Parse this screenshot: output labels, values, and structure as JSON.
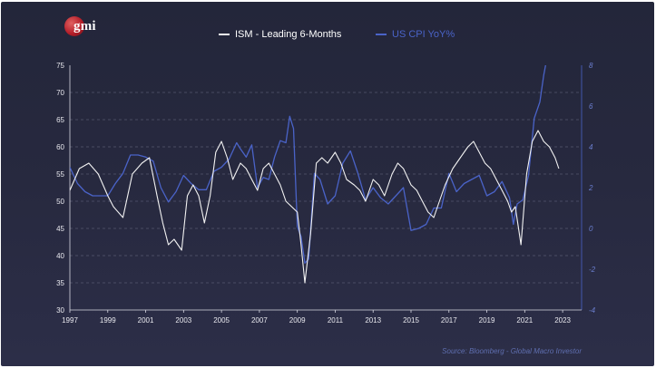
{
  "brand": {
    "logo_text": "gmi"
  },
  "colors": {
    "ism": "#f2f2f2",
    "cpi": "#4a63c8",
    "background": "#26283d",
    "grid": "#6c6f86"
  },
  "source": "Source: Bloomberg - Global Macro Investor",
  "chart_data": {
    "type": "line",
    "title": "",
    "grid": true,
    "legend_position": "top-center",
    "x_range": [
      1997,
      2024
    ],
    "x_ticks": [
      "1997",
      "1999",
      "2001",
      "2003",
      "2005",
      "2007",
      "2009",
      "2011",
      "2013",
      "2015",
      "2017",
      "2019",
      "2021",
      "2023"
    ],
    "y_left": {
      "range": [
        30,
        75
      ],
      "ticks": [
        "75",
        "70",
        "65",
        "60",
        "55",
        "50",
        "45",
        "40",
        "35",
        "30"
      ]
    },
    "y_right": {
      "range": [
        -4,
        8
      ],
      "ticks": [
        "8",
        "6",
        "4",
        "2",
        "0",
        "-2",
        "-4"
      ]
    },
    "series": [
      {
        "name": "ISM - Leading 6-Months",
        "axis": "left",
        "color": "#f2f2f2",
        "x": [
          1997.0,
          1997.5,
          1998.0,
          1998.5,
          1999.0,
          1999.3,
          1999.8,
          2000.3,
          2000.8,
          2001.2,
          2001.6,
          2001.9,
          2002.2,
          2002.5,
          2002.9,
          2003.2,
          2003.5,
          2003.8,
          2004.1,
          2004.4,
          2004.7,
          2005.0,
          2005.3,
          2005.6,
          2006.0,
          2006.3,
          2006.6,
          2006.9,
          2007.2,
          2007.5,
          2007.8,
          2008.1,
          2008.4,
          2008.7,
          2009.0,
          2009.2,
          2009.4,
          2009.7,
          2010.0,
          2010.3,
          2010.6,
          2011.0,
          2011.3,
          2011.6,
          2012.0,
          2012.3,
          2012.6,
          2013.0,
          2013.3,
          2013.6,
          2014.0,
          2014.3,
          2014.6,
          2015.0,
          2015.3,
          2015.6,
          2015.9,
          2016.2,
          2016.5,
          2016.8,
          2017.2,
          2017.6,
          2018.0,
          2018.3,
          2018.6,
          2018.9,
          2019.2,
          2019.5,
          2019.8,
          2020.1,
          2020.3,
          2020.5,
          2020.8,
          2021.1,
          2021.4,
          2021.7,
          2022.0,
          2022.3,
          2022.6,
          2022.8
        ],
        "values": [
          52,
          56,
          57,
          55,
          51,
          49,
          47,
          55,
          57,
          58,
          51,
          46,
          42,
          43,
          41,
          51,
          53,
          51,
          46,
          51,
          59,
          61,
          58,
          54,
          57,
          56,
          54,
          52,
          56,
          57,
          55,
          53,
          50,
          49,
          48,
          42,
          35,
          44,
          57,
          58,
          57,
          59,
          57,
          54,
          53,
          52,
          50,
          54,
          53,
          51,
          55,
          57,
          56,
          53,
          52,
          50,
          48,
          47,
          50,
          53,
          56,
          58,
          60,
          61,
          59,
          57,
          56,
          54,
          52,
          50,
          48,
          49,
          42,
          55,
          61,
          63,
          61,
          60,
          58,
          56
        ]
      },
      {
        "name": "US CPI YoY%",
        "axis": "right",
        "color": "#4a63c8",
        "x": [
          1997.0,
          1997.4,
          1997.8,
          1998.2,
          1998.6,
          1999.0,
          1999.4,
          1999.8,
          2000.2,
          2000.6,
          2001.0,
          2001.4,
          2001.8,
          2002.2,
          2002.6,
          2003.0,
          2003.4,
          2003.8,
          2004.2,
          2004.6,
          2005.0,
          2005.4,
          2005.8,
          2006.0,
          2006.3,
          2006.6,
          2006.9,
          2007.2,
          2007.5,
          2007.8,
          2008.1,
          2008.4,
          2008.6,
          2008.8,
          2009.0,
          2009.2,
          2009.4,
          2009.6,
          2009.9,
          2010.2,
          2010.6,
          2011.0,
          2011.4,
          2011.8,
          2012.2,
          2012.6,
          2013.0,
          2013.4,
          2013.8,
          2014.2,
          2014.6,
          2015.0,
          2015.4,
          2015.8,
          2016.2,
          2016.6,
          2017.0,
          2017.4,
          2017.8,
          2018.2,
          2018.6,
          2019.0,
          2019.4,
          2019.8,
          2020.2,
          2020.4,
          2020.6,
          2020.9,
          2021.2,
          2021.5,
          2021.8,
          2022.0,
          2022.2,
          2022.5
        ],
        "values": [
          3.0,
          2.2,
          1.8,
          1.6,
          1.6,
          1.6,
          2.2,
          2.7,
          3.6,
          3.6,
          3.5,
          3.3,
          2.0,
          1.3,
          1.8,
          2.6,
          2.2,
          1.9,
          1.9,
          2.8,
          3.0,
          3.4,
          4.2,
          3.9,
          3.5,
          4.1,
          2.0,
          2.5,
          2.4,
          3.5,
          4.3,
          4.2,
          5.5,
          4.9,
          0.1,
          -0.4,
          -1.7,
          -1.5,
          2.7,
          2.4,
          1.2,
          1.6,
          3.2,
          3.8,
          2.7,
          1.4,
          2.0,
          1.5,
          1.2,
          1.6,
          2.0,
          -0.1,
          0.0,
          0.2,
          1.0,
          1.0,
          2.7,
          1.8,
          2.2,
          2.4,
          2.6,
          1.6,
          1.8,
          2.3,
          1.5,
          0.2,
          1.2,
          1.4,
          2.6,
          5.4,
          6.2,
          7.5,
          8.5,
          9.0
        ]
      }
    ]
  }
}
